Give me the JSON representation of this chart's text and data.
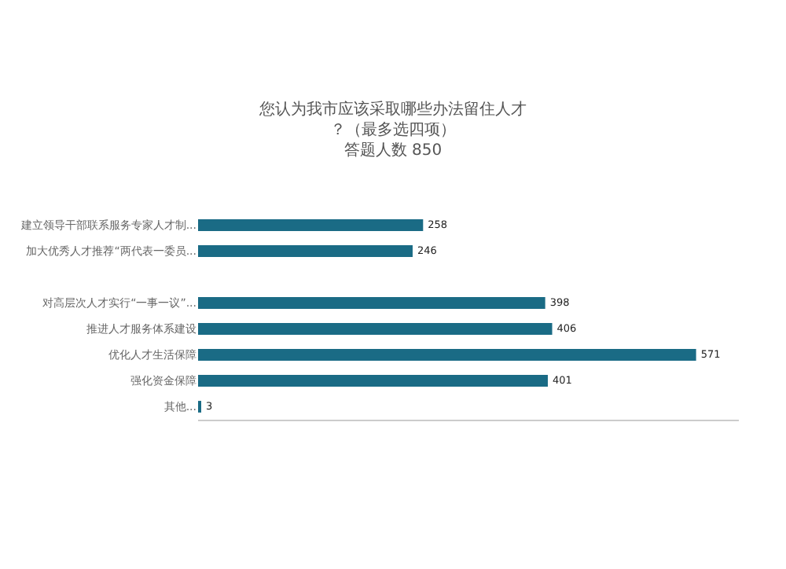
{
  "chart_data": {
    "type": "bar",
    "orientation": "horizontal",
    "title": "您认为我市应该采取哪些办法留住人才？（最多选四项）",
    "subtitle": "答题人数 850",
    "categories": [
      "建立领导干部联系服务专家人才制...",
      "加大优秀人才推荐“两代表一委员...",
      null,
      "对高层次人才实行“一事一议”...",
      "推进人才服务体系建设",
      "优化人才生活保障",
      "强化资金保障",
      "其他..."
    ],
    "values": [
      258,
      246,
      null,
      398,
      406,
      571,
      401,
      3
    ],
    "color": "#1a6b85",
    "xlim": [
      0,
      620
    ],
    "data_labels": true
  }
}
